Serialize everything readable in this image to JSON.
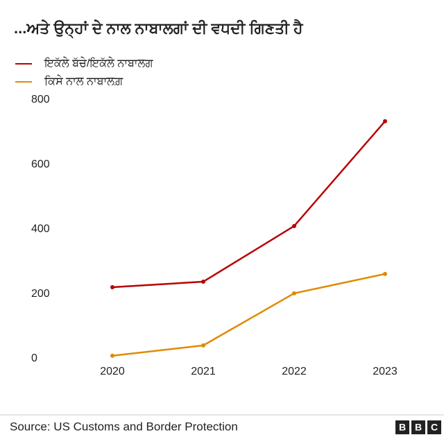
{
  "chart_data": {
    "type": "line",
    "title": "...ਅਤੇ ਉਨ੍ਹਾਂ ਦੇ ਨਾਲ ਨਾਬਾਲਗਾਂ ਦੀ ਵਧਦੀ ਗਿਣਤੀ ਹੈ",
    "categories": [
      "2020",
      "2021",
      "2022",
      "2023"
    ],
    "series": [
      {
        "name": "ਇਕੱਲੇ ਬੱਚੇ/ਇਕੱਲੇ ਨਾਬਾਲਗ",
        "color": "#b80000",
        "values": [
          221,
          238,
          410,
          734
        ]
      },
      {
        "name": "ਕਿਸੇ ਨਾਲ ਨਾਬਾਲਗ਼",
        "color": "#e08a00",
        "values": [
          9,
          41,
          202,
          262
        ]
      }
    ],
    "ylim": [
      0,
      800
    ],
    "yticks": [
      0,
      200,
      400,
      600,
      800
    ],
    "grid": false,
    "source": "Source: US Customs and Border Protection",
    "logo": [
      "B",
      "B",
      "C"
    ]
  }
}
